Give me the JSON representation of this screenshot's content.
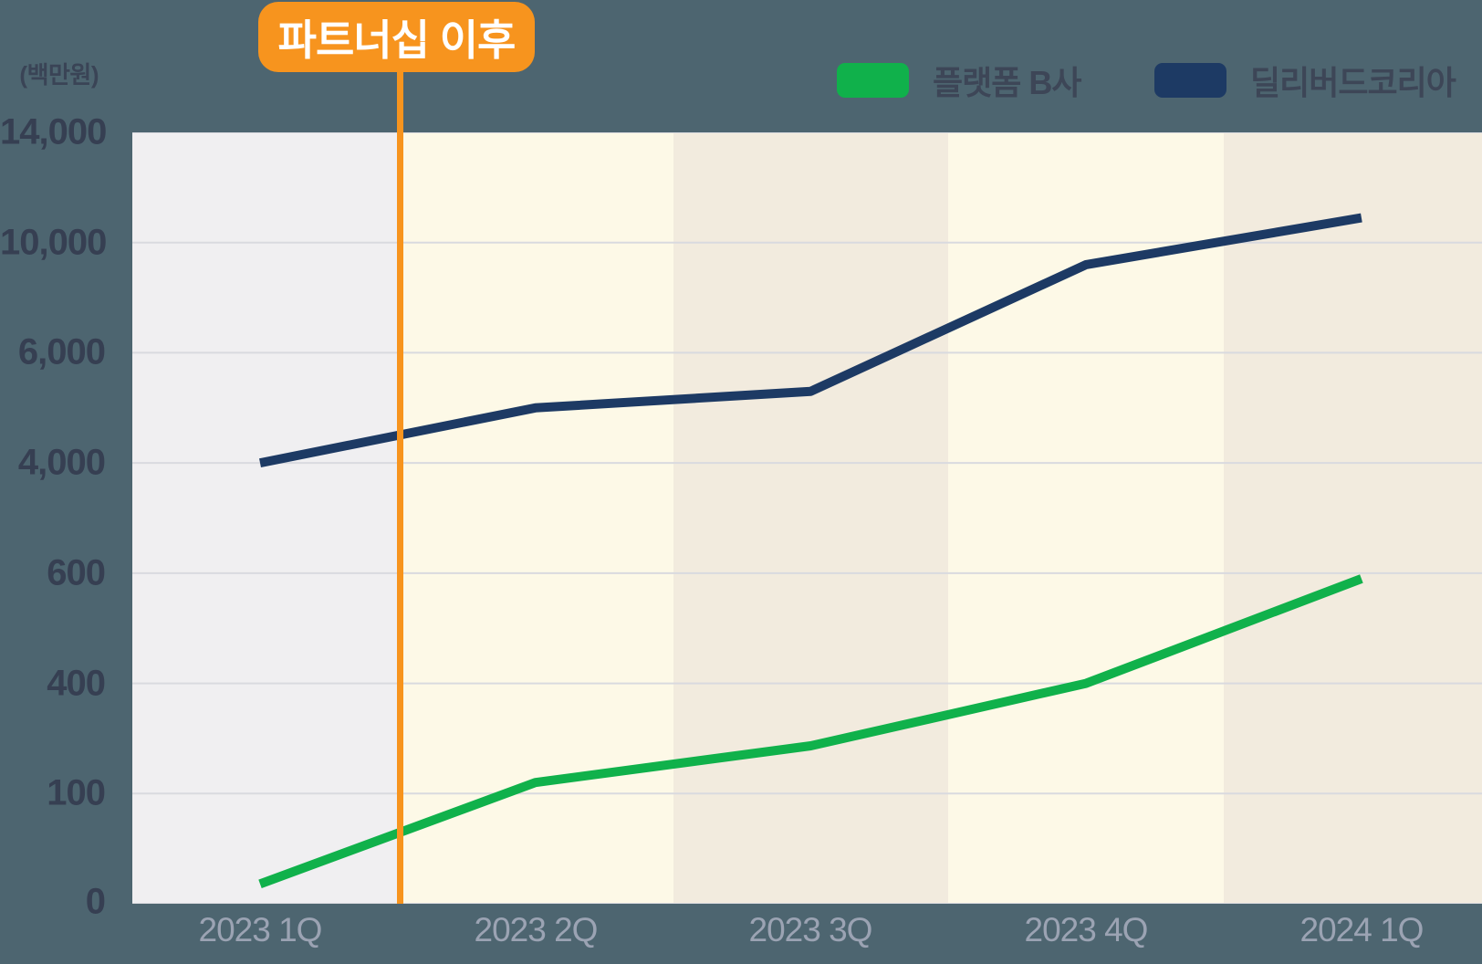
{
  "chart": {
    "unit_label": "(백만원)",
    "background_color": "#4D6570",
    "gridline_color": "#D9DADF",
    "y_label_color": "#363F52",
    "x_label_color": "#9BA3B3"
  },
  "annotation": {
    "label": "파트너십 이후",
    "badge_color": "#F7941E",
    "line_color": "#F7941E",
    "text_color": "#FFFFFF"
  },
  "legend": {
    "items": [
      {
        "label": "플랫폼 B사",
        "color": "#10B14B"
      },
      {
        "label": "딜리버드코리아",
        "color": "#1D3A64"
      }
    ]
  },
  "chart_data": {
    "type": "line",
    "title": "",
    "ylabel": "(백만원)",
    "xlabel": "",
    "categories": [
      "2023 1Q",
      "2023 2Q",
      "2023 3Q",
      "2023 4Q",
      "2024 1Q"
    ],
    "series": [
      {
        "name": "플랫폼 B사",
        "color": "#10B14B",
        "values": [
          18,
          130,
          230,
          400,
          590
        ]
      },
      {
        "name": "딜리버드코리아",
        "color": "#1D3A64",
        "values": [
          4000,
          5000,
          5300,
          9200,
          10900
        ]
      }
    ],
    "y_ticks": [
      0,
      100,
      400,
      600,
      4000,
      6000,
      10000,
      14000
    ],
    "y_tick_labels": [
      "0",
      "100",
      "400",
      "600",
      "4,000",
      "6,000",
      "10,000",
      "14,000"
    ],
    "axis_note": "non-linear y axis: the 8 tick values are evenly spaced on screen",
    "grid": true,
    "legend_position": "top-right",
    "annotation": {
      "label": "파트너십 이후",
      "position": "vertical line between 2023 1Q and 2023 2Q",
      "color": "#F7941E"
    },
    "band_colors": [
      "#F0EFF1",
      "#FDF9E7",
      "#F2EBDE",
      "#FDF9E7",
      "#F2EBDE"
    ]
  }
}
